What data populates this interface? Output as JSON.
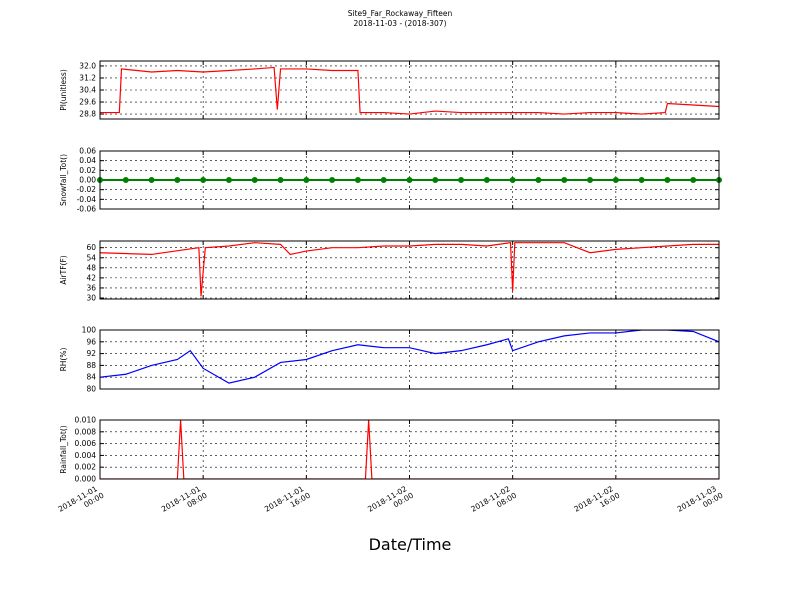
{
  "title": "Site9_Far_Rockaway_Fifteen",
  "subtitle": "2018-11-03 - (2018-307)",
  "xlabel": "Date/Time",
  "xlim": [
    "2018-11-01 00:00",
    "2018-11-03 00:00"
  ],
  "xticks": [
    "2018-11-01 00:00",
    "2018-11-01 08:00",
    "2018-11-01 16:00",
    "2018-11-02 00:00",
    "2018-11-02 08:00",
    "2018-11-02 16:00",
    "2018-11-03 00:00"
  ],
  "grid": true,
  "chart_data": [
    {
      "type": "line",
      "ylabel": "Pl(unitless)",
      "color": "#ff0000",
      "ylim": [
        28.47,
        32.33
      ],
      "yticks": [
        28.8,
        29.6,
        30.4,
        31.2,
        {
          "value": 32,
          "label": "32.0"
        }
      ],
      "x": [
        "2018-11-01 00:00",
        "2018-11-01 01:30",
        "2018-11-01 01:40",
        "2018-11-01 04:00",
        "2018-11-01 06:00",
        "2018-11-01 08:00",
        "2018-11-01 10:00",
        "2018-11-01 12:00",
        "2018-11-01 13:30",
        "2018-11-01 13:45",
        "2018-11-01 14:00",
        "2018-11-01 16:00",
        "2018-11-01 18:00",
        "2018-11-01 20:00",
        "2018-11-01 20:10",
        "2018-11-01 22:00",
        "2018-11-02 00:00",
        "2018-11-02 02:00",
        "2018-11-02 04:00",
        "2018-11-02 06:00",
        "2018-11-02 08:00",
        "2018-11-02 10:00",
        "2018-11-02 12:00",
        "2018-11-02 14:00",
        "2018-11-02 16:00",
        "2018-11-02 18:00",
        "2018-11-02 19:50",
        "2018-11-02 20:00",
        "2018-11-02 22:00",
        "2018-11-03 00:00"
      ],
      "values": [
        28.9,
        28.9,
        31.8,
        31.6,
        31.7,
        31.6,
        31.7,
        31.8,
        31.9,
        29.1,
        31.8,
        31.8,
        31.7,
        31.7,
        28.9,
        28.9,
        28.8,
        29.0,
        28.9,
        28.9,
        28.9,
        28.9,
        28.8,
        28.9,
        28.9,
        28.8,
        28.9,
        29.5,
        29.4,
        29.3
      ]
    },
    {
      "type": "line",
      "ylabel": "Snowfall_Tot()",
      "color": "#008000",
      "markers": true,
      "ylim": [
        -0.06,
        0.06
      ],
      "yticks": [
        -0.06,
        -0.04,
        -0.02,
        {
          "value": 0,
          "label": "0.00"
        },
        0.02,
        0.04,
        0.06
      ],
      "x": [
        "2018-11-01 00:00",
        "2018-11-01 02:00",
        "2018-11-01 04:00",
        "2018-11-01 06:00",
        "2018-11-01 08:00",
        "2018-11-01 10:00",
        "2018-11-01 12:00",
        "2018-11-01 14:00",
        "2018-11-01 16:00",
        "2018-11-01 18:00",
        "2018-11-01 20:00",
        "2018-11-01 22:00",
        "2018-11-02 00:00",
        "2018-11-02 02:00",
        "2018-11-02 04:00",
        "2018-11-02 06:00",
        "2018-11-02 08:00",
        "2018-11-02 10:00",
        "2018-11-02 12:00",
        "2018-11-02 14:00",
        "2018-11-02 16:00",
        "2018-11-02 18:00",
        "2018-11-02 20:00",
        "2018-11-02 22:00",
        "2018-11-03 00:00"
      ],
      "values": [
        0,
        0,
        0,
        0,
        0,
        0,
        0,
        0,
        0,
        0,
        0,
        0,
        0,
        0,
        0,
        0,
        0,
        0,
        0,
        0,
        0,
        0,
        0,
        0,
        0
      ]
    },
    {
      "type": "line",
      "ylabel": "AirTF(F)",
      "color": "#ff0000",
      "ylim": [
        29.4,
        64
      ],
      "yticks": [
        30,
        36,
        42,
        48,
        54,
        60
      ],
      "x": [
        "2018-11-01 00:00",
        "2018-11-01 04:00",
        "2018-11-01 07:40",
        "2018-11-01 07:50",
        "2018-11-01 08:10",
        "2018-11-01 10:00",
        "2018-11-01 12:00",
        "2018-11-01 14:00",
        "2018-11-01 14:45",
        "2018-11-01 16:00",
        "2018-11-01 18:00",
        "2018-11-01 20:00",
        "2018-11-01 22:00",
        "2018-11-02 00:00",
        "2018-11-02 02:00",
        "2018-11-02 04:00",
        "2018-11-02 06:00",
        "2018-11-02 07:50",
        "2018-11-02 08:00",
        "2018-11-02 08:10",
        "2018-11-02 10:00",
        "2018-11-02 12:00",
        "2018-11-02 14:00",
        "2018-11-02 16:00",
        "2018-11-02 18:00",
        "2018-11-02 20:00",
        "2018-11-02 22:00",
        "2018-11-03 00:00"
      ],
      "values": [
        57,
        56,
        60,
        31,
        60,
        61,
        63,
        62,
        56,
        58,
        60,
        60,
        61,
        61,
        62,
        62,
        61,
        63,
        34,
        63,
        63,
        63,
        57,
        59,
        60,
        61,
        62,
        62
      ]
    },
    {
      "type": "line",
      "ylabel": "RH(%)",
      "color": "#0000ff",
      "ylim": [
        80,
        100
      ],
      "yticks": [
        80,
        84,
        88,
        92,
        96,
        100
      ],
      "x": [
        "2018-11-01 00:00",
        "2018-11-01 02:00",
        "2018-11-01 04:00",
        "2018-11-01 06:00",
        "2018-11-01 07:00",
        "2018-11-01 08:00",
        "2018-11-01 10:00",
        "2018-11-01 12:00",
        "2018-11-01 14:00",
        "2018-11-01 16:00",
        "2018-11-01 18:00",
        "2018-11-01 20:00",
        "2018-11-01 22:00",
        "2018-11-02 00:00",
        "2018-11-02 02:00",
        "2018-11-02 04:00",
        "2018-11-02 06:00",
        "2018-11-02 07:40",
        "2018-11-02 08:00",
        "2018-11-02 10:00",
        "2018-11-02 12:00",
        "2018-11-02 14:00",
        "2018-11-02 16:00",
        "2018-11-02 18:00",
        "2018-11-02 20:00",
        "2018-11-02 22:00",
        "2018-11-03 00:00"
      ],
      "values": [
        84,
        85,
        88,
        90,
        93,
        87,
        82,
        84,
        89,
        90,
        93,
        95,
        94,
        94,
        92,
        93,
        95,
        97,
        93,
        96,
        98,
        99,
        99,
        100,
        100,
        99.5,
        96
      ]
    },
    {
      "type": "line",
      "ylabel": "Rainfall_Tot()",
      "color": "#ff0000",
      "ylim": [
        0,
        0.01
      ],
      "yticks": [
        {
          "value": 0,
          "label": "0.000"
        },
        0.002,
        0.004,
        0.006,
        0.008,
        {
          "value": 0.01,
          "label": "0.010"
        }
      ],
      "x": [
        "2018-11-01 00:00",
        "2018-11-01 06:00",
        "2018-11-01 06:15",
        "2018-11-01 06:30",
        "2018-11-01 20:35",
        "2018-11-01 20:50",
        "2018-11-01 21:05",
        "2018-11-03 00:00"
      ],
      "values": [
        0,
        0,
        0.01,
        0,
        0,
        0.01,
        0,
        0
      ]
    }
  ]
}
